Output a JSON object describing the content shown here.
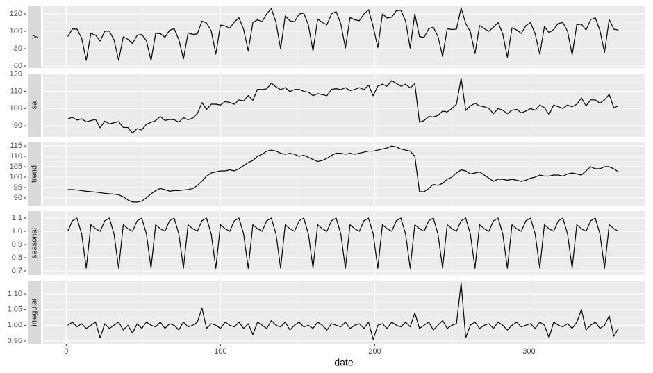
{
  "chart_data": {
    "type": "line",
    "x_label": "date",
    "xlim": [
      -15,
      375
    ],
    "xticks": [
      0,
      100,
      200,
      300
    ],
    "grid": true,
    "color": "#000000",
    "x": [
      1,
      4,
      7,
      10,
      13,
      16,
      19,
      22,
      25,
      28,
      31,
      34,
      37,
      40,
      43,
      46,
      49,
      52,
      55,
      58,
      61,
      64,
      67,
      70,
      73,
      76,
      79,
      82,
      85,
      88,
      91,
      94,
      97,
      100,
      103,
      106,
      109,
      112,
      115,
      118,
      121,
      124,
      127,
      130,
      133,
      136,
      139,
      142,
      145,
      148,
      151,
      154,
      157,
      160,
      163,
      166,
      169,
      172,
      175,
      178,
      181,
      184,
      187,
      190,
      193,
      196,
      199,
      202,
      205,
      208,
      211,
      214,
      217,
      220,
      223,
      226,
      229,
      232,
      235,
      238,
      241,
      244,
      247,
      250,
      253,
      256,
      259,
      262,
      265,
      268,
      271,
      274,
      277,
      280,
      283,
      286,
      289,
      292,
      295,
      298,
      301,
      304,
      307,
      310,
      313,
      316,
      319,
      322,
      325,
      328,
      331,
      334,
      337,
      340,
      343,
      346,
      349,
      352,
      355,
      358
    ],
    "panels": [
      {
        "name": "y",
        "ylim": [
          57.6,
          129.6
        ],
        "yticks": [
          60,
          80,
          100,
          120
        ],
        "values": [
          94.0,
          102.5,
          102.6,
          92.1,
          66.5,
          97.7,
          95.6,
          88.8,
          100.1,
          100.2,
          90.0,
          66.5,
          93.6,
          90.8,
          85.8,
          95.5,
          96.4,
          89.1,
          66.2,
          97.7,
          97.3,
          93.1,
          101.2,
          102.9,
          90.3,
          68.2,
          98.2,
          96.4,
          97.0,
          111.7,
          109.5,
          100.5,
          73.8,
          107.1,
          106.1,
          103.5,
          110.7,
          115.5,
          102.3,
          77.4,
          110.0,
          113.3,
          111.0,
          120.3,
          126.2,
          110.3,
          79.8,
          117.7,
          112.0,
          111.0,
          120.0,
          120.9,
          107.3,
          77.3,
          114.0,
          110.2,
          107.4,
          120.0,
          122.7,
          108.7,
          80.7,
          115.9,
          113.2,
          112.1,
          119.8,
          125.0,
          105.3,
          81.4,
          119.8,
          115.2,
          116.2,
          123.7,
          124.2,
          111.8,
          80.6,
          120.1,
          93.9,
          93.0,
          103.0,
          104.6,
          94.1,
          70.9,
          102.9,
          102.0,
          102.5,
          126.9,
          108.8,
          99.5,
          74.2,
          106.6,
          103.0,
          100.0,
          104.8,
          110.0,
          97.0,
          69.8,
          104.0,
          101.5,
          97.5,
          106.4,
          110.0,
          97.0,
          73.4,
          105.5,
          98.4,
          102.0,
          109.1,
          110.0,
          100.0,
          72.7,
          107.6,
          108.2,
          101.5,
          113.4,
          115.5,
          100.9,
          75.6,
          113.6,
          102.4,
          101.5
        ]
      },
      {
        "name": "sa",
        "ylim": [
          83.6,
          120.2
        ],
        "yticks": [
          90,
          100,
          110,
          120
        ],
        "values": [
          94.0,
          94.9,
          93.3,
          94.0,
          92.3,
          93.0,
          93.7,
          88.8,
          92.7,
          91.1,
          91.8,
          92.4,
          89.1,
          89.0,
          85.8,
          88.4,
          87.6,
          90.9,
          92.0,
          93.0,
          95.4,
          93.1,
          93.7,
          93.5,
          92.1,
          94.7,
          93.5,
          94.5,
          97.0,
          103.4,
          99.5,
          102.5,
          102.5,
          102.0,
          104.0,
          103.5,
          102.5,
          105.0,
          104.4,
          107.5,
          104.8,
          111.1,
          111.0,
          111.4,
          114.7,
          112.5,
          110.9,
          112.1,
          109.8,
          111.0,
          111.1,
          109.9,
          109.5,
          107.4,
          108.6,
          108.0,
          107.4,
          111.1,
          111.5,
          110.9,
          112.1,
          110.4,
          111.0,
          112.1,
          110.9,
          113.6,
          107.4,
          113.0,
          114.1,
          112.9,
          116.2,
          114.5,
          112.9,
          114.1,
          111.9,
          114.4,
          92.1,
          93.0,
          95.4,
          95.1,
          96.0,
          98.5,
          98.0,
          100.0,
          102.5,
          117.5,
          98.9,
          101.5,
          103.0,
          101.5,
          101.0,
          100.0,
          97.0,
          100.0,
          99.0,
          97.0,
          99.0,
          99.5,
          97.5,
          98.5,
          100.0,
          99.0,
          102.0,
          100.5,
          96.5,
          102.0,
          101.0,
          100.0,
          102.0,
          101.0,
          102.5,
          106.1,
          101.5,
          105.0,
          105.0,
          103.0,
          105.0,
          108.2,
          100.4,
          101.5
        ]
      },
      {
        "name": "trend",
        "ylim": [
          86.3,
          116.7
        ],
        "yticks": [
          90,
          95,
          100,
          105,
          110,
          115
        ],
        "values": [
          94,
          94,
          93.8,
          93.5,
          93.2,
          93,
          92.8,
          92.5,
          92.2,
          92,
          91.8,
          91.5,
          90.5,
          89,
          88,
          88,
          88.5,
          90,
          92,
          93.5,
          94.5,
          94,
          93.2,
          93.5,
          93.5,
          93.8,
          94,
          94.5,
          96,
          98,
          100.5,
          102,
          102.5,
          103,
          103,
          103.5,
          103,
          104,
          105.5,
          107,
          108,
          110,
          111,
          112.5,
          113,
          112.5,
          111.5,
          111,
          111.5,
          111,
          110,
          110.5,
          109.5,
          108.5,
          107.5,
          108,
          109,
          110.5,
          111.5,
          111.5,
          111,
          111.5,
          111,
          111.5,
          112,
          112.5,
          112.5,
          113,
          113.5,
          114,
          115,
          114.5,
          113.5,
          113,
          112.5,
          110,
          93,
          93,
          94.5,
          96.5,
          96,
          97,
          99,
          100,
          102,
          103.5,
          103,
          101.5,
          102,
          102.5,
          101,
          99.5,
          98,
          99,
          99,
          98.5,
          99,
          98.5,
          98,
          98.5,
          99.5,
          100,
          101,
          100.5,
          100.5,
          101,
          101,
          100.5,
          101.5,
          102,
          101.5,
          101,
          103,
          105,
          104,
          104,
          105,
          105,
          104,
          102.5
        ]
      },
      {
        "name": "seasonal",
        "ylim": [
          0.668,
          1.153
        ],
        "yticks": [
          {
            "value": 0.7,
            "label": "0.7"
          },
          {
            "value": 0.8,
            "label": "0.8"
          },
          {
            "value": 0.9,
            "label": "0.9"
          },
          {
            "value": 1.0,
            "label": "1.0"
          },
          {
            "value": 1.1,
            "label": "1.1"
          }
        ],
        "values": [
          1.0,
          1.08,
          1.1,
          0.98,
          0.72,
          1.05,
          1.02,
          1.0,
          1.08,
          1.1,
          0.98,
          0.72,
          1.05,
          1.02,
          1.0,
          1.08,
          1.1,
          0.98,
          0.72,
          1.05,
          1.02,
          1.0,
          1.08,
          1.1,
          0.98,
          0.72,
          1.05,
          1.02,
          1.0,
          1.08,
          1.1,
          0.98,
          0.72,
          1.05,
          1.02,
          1.0,
          1.08,
          1.1,
          0.98,
          0.72,
          1.05,
          1.02,
          1.0,
          1.08,
          1.1,
          0.98,
          0.72,
          1.05,
          1.02,
          1.0,
          1.08,
          1.1,
          0.98,
          0.72,
          1.05,
          1.02,
          1.0,
          1.08,
          1.1,
          0.98,
          0.72,
          1.05,
          1.02,
          1.0,
          1.08,
          1.1,
          0.98,
          0.72,
          1.05,
          1.02,
          1.0,
          1.08,
          1.1,
          0.98,
          0.72,
          1.05,
          1.02,
          1.0,
          1.08,
          1.1,
          0.98,
          0.72,
          1.05,
          1.02,
          1.0,
          1.08,
          1.1,
          0.98,
          0.72,
          1.05,
          1.02,
          1.0,
          1.08,
          1.1,
          0.98,
          0.72,
          1.05,
          1.02,
          1.0,
          1.08,
          1.1,
          0.98,
          0.72,
          1.05,
          1.02,
          1.0,
          1.08,
          1.1,
          0.98,
          0.72,
          1.05,
          1.02,
          1.0,
          1.08,
          1.1,
          0.98,
          0.72,
          1.05,
          1.02,
          1.0
        ]
      },
      {
        "name": "irregular",
        "ylim": [
          0.941,
          1.142
        ],
        "yticks": [
          0.95,
          {
            "value": 1.0,
            "label": "1.00"
          },
          1.05,
          {
            "value": 1.1,
            "label": "1.10"
          }
        ],
        "values": [
          1.0,
          1.01,
          0.995,
          1.005,
          0.99,
          1.0,
          1.01,
          0.96,
          1.005,
          0.99,
          1.0,
          1.01,
          0.985,
          1.0,
          0.975,
          1.005,
          0.99,
          1.01,
          1.0,
          0.995,
          1.01,
          0.99,
          1.005,
          1.0,
          0.985,
          1.01,
          0.995,
          1.0,
          1.01,
          1.055,
          0.99,
          1.005,
          1.0,
          0.99,
          1.01,
          1.0,
          0.995,
          1.01,
          0.99,
          1.005,
          0.97,
          1.01,
          1.0,
          0.99,
          1.015,
          1.0,
          0.995,
          1.01,
          0.985,
          1.0,
          1.01,
          0.995,
          1.0,
          0.99,
          1.01,
          1.0,
          0.985,
          1.005,
          1.0,
          0.995,
          1.01,
          0.99,
          1.0,
          1.005,
          0.99,
          1.01,
          0.955,
          1.0,
          1.005,
          0.99,
          1.01,
          1.0,
          0.995,
          1.01,
          0.995,
          1.04,
          0.99,
          1.0,
          1.01,
          0.985,
          1.0,
          1.015,
          0.99,
          1.0,
          1.005,
          1.135,
          0.96,
          1.0,
          1.01,
          0.99,
          1.0,
          1.005,
          0.99,
          1.01,
          1.0,
          0.985,
          1.0,
          1.01,
          0.995,
          1.0,
          1.005,
          0.99,
          1.01,
          1.0,
          0.96,
          1.01,
          1.0,
          0.995,
          1.005,
          0.99,
          1.01,
          1.05,
          0.985,
          1.0,
          1.01,
          0.99,
          1.0,
          1.03,
          0.965,
          0.99
        ]
      }
    ]
  }
}
